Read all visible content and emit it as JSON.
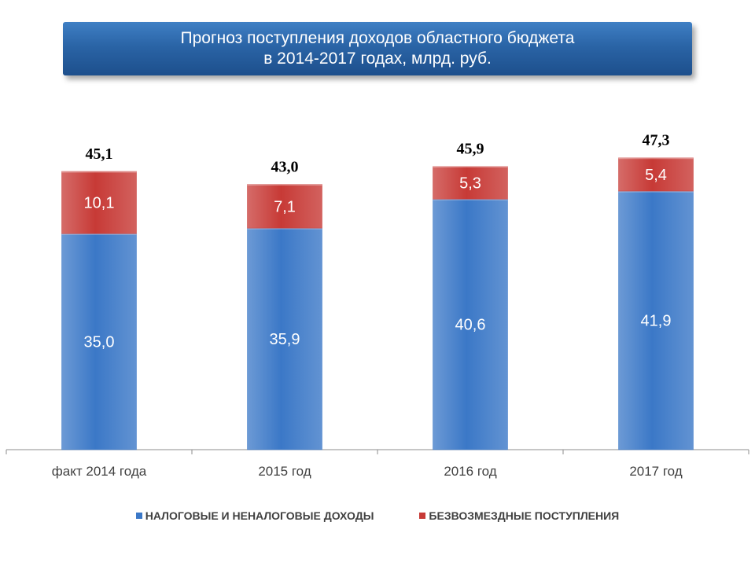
{
  "title": {
    "line1": "Прогноз поступления доходов областного бюджета",
    "line2": "в 2014-2017 годах, млрд. руб."
  },
  "colors": {
    "tax": "#3b78c7",
    "grants": "#c73a36",
    "title_bg": "#2a64a6"
  },
  "chart_data": {
    "type": "bar",
    "stacked": true,
    "categories": [
      "факт 2014 года",
      "2015 год",
      "2016 год",
      "2017 год"
    ],
    "series": [
      {
        "name": "НАЛОГОВЫЕ И НЕНАЛОГОВЫЕ ДОХОДЫ",
        "values": [
          35.0,
          35.9,
          40.6,
          41.9
        ],
        "labels": [
          "35,0",
          "35,9",
          "40,6",
          "41,9"
        ]
      },
      {
        "name": "БЕЗВОЗМЕЗДНЫЕ ПОСТУПЛЕНИЯ",
        "values": [
          10.1,
          7.1,
          5.3,
          5.4
        ],
        "labels": [
          "10,1",
          "7,1",
          "5,3",
          "5,4"
        ]
      }
    ],
    "totals": [
      45.1,
      43.0,
      45.9,
      47.3
    ],
    "total_labels": [
      "45,1",
      "43,0",
      "45,9",
      "47,3"
    ],
    "grid": false,
    "legend_position": "bottom"
  }
}
